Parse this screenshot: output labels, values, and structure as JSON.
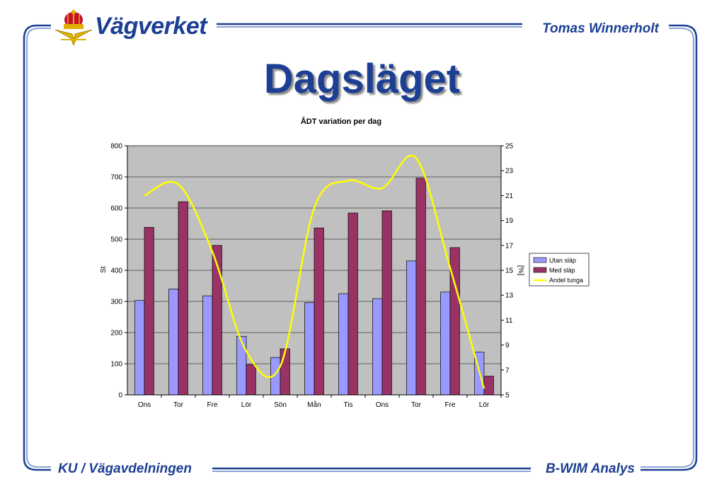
{
  "header": {
    "logo_text": "Vägverket",
    "author": "Tomas Winnerholt"
  },
  "slide": {
    "title": "Dagsläget"
  },
  "footer": {
    "left": "KU / Vägavdelningen",
    "right": "B-WIM Analys"
  },
  "colors": {
    "brand_blue": "#1c3f94",
    "plot_bg": "#c0c0c0",
    "series_utan": "#9999ff",
    "series_med": "#993366",
    "series_andel": "#ffff00"
  },
  "icons": [
    "crown-icon",
    "wings-icon"
  ],
  "chart_data": {
    "type": "bar",
    "title": "ÅDT variation per dag",
    "ylabel": "St",
    "y2label": "[%]",
    "xlabel": "",
    "categories": [
      "Ons",
      "Tor",
      "Fre",
      "Lör",
      "Sön",
      "Mån",
      "Tis",
      "Ons",
      "Tor",
      "Fre",
      "Lör"
    ],
    "ylim": [
      0,
      800
    ],
    "yticks": [
      "0",
      "100",
      "200",
      "300",
      "400",
      "500",
      "600",
      "700",
      "800"
    ],
    "y2lim": [
      5,
      25
    ],
    "y2ticks": [
      "5",
      "7",
      "9",
      "11",
      "13",
      "15",
      "17",
      "19",
      "21",
      "23",
      "25"
    ],
    "grid": true,
    "legend_position": "right",
    "series": [
      {
        "name": "Utan släp",
        "type": "bar",
        "axis": "left",
        "values": [
          303,
          340,
          318,
          188,
          120,
          296,
          325,
          309,
          430,
          330,
          137
        ]
      },
      {
        "name": "Med släp",
        "type": "bar",
        "axis": "left",
        "values": [
          538,
          620,
          480,
          97,
          148,
          536,
          584,
          591,
          696,
          473,
          60
        ]
      },
      {
        "name": "Andel tunga",
        "type": "line",
        "axis": "right",
        "values": [
          21.0,
          21.9,
          16.5,
          8.5,
          7.3,
          20.0,
          22.2,
          21.6,
          24.0,
          15.2,
          5.5
        ]
      }
    ]
  }
}
